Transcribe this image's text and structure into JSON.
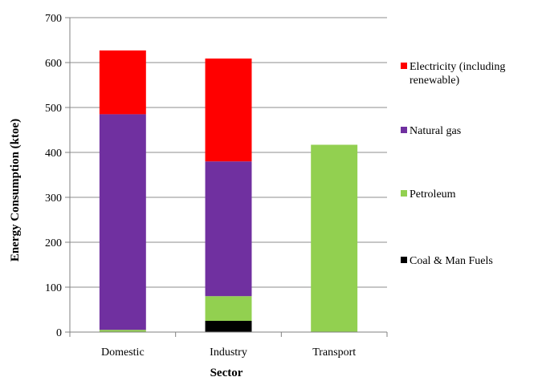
{
  "chart_data": {
    "type": "bar",
    "stacked": true,
    "title": "",
    "xlabel": "Sector",
    "ylabel": "Energy Consumption (ktoe)",
    "categories": [
      "Domestic",
      "Industry",
      "Transport"
    ],
    "ylim": [
      0,
      700
    ],
    "yticks": [
      0,
      100,
      200,
      300,
      400,
      500,
      600,
      700
    ],
    "grid": true,
    "legend_position": "right",
    "series": [
      {
        "name": "Coal & Man Fuels",
        "color": "#000000",
        "values": [
          0,
          25,
          0
        ]
      },
      {
        "name": "Petroleum",
        "color": "#92D050",
        "values": [
          5,
          55,
          417
        ]
      },
      {
        "name": "Natural gas",
        "color": "#7030A0",
        "values": [
          480,
          300,
          0
        ]
      },
      {
        "name": "Electricity (including renewable)",
        "color": "#FF0000",
        "values": [
          142,
          229,
          0
        ]
      }
    ],
    "legend": [
      {
        "lines": [
          "Electricity (including",
          "renewable)"
        ],
        "color": "#FF0000"
      },
      {
        "lines": [
          "Natural gas"
        ],
        "color": "#7030A0"
      },
      {
        "lines": [
          "Petroleum"
        ],
        "color": "#92D050"
      },
      {
        "lines": [
          "Coal & Man Fuels"
        ],
        "color": "#000000"
      }
    ]
  }
}
